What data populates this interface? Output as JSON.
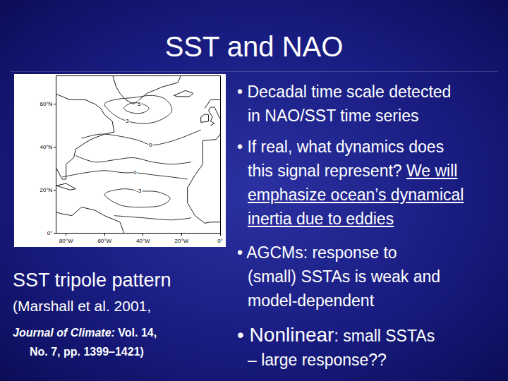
{
  "slide": {
    "title": "SST and NAO",
    "bullets": [
      [
        [
          {
            "text": "• Decadal time scale detected"
          }
        ],
        [
          {
            "text": "in NAO/SST time series"
          }
        ]
      ],
      [
        [
          {
            "text": "• If real, what dynamics does"
          }
        ],
        [
          {
            "text": "this signal represent? "
          },
          {
            "text": "We will",
            "style": "underline"
          }
        ],
        [
          {
            "text": "emphasize ocean’s dynamical",
            "style": "underline"
          }
        ],
        [
          {
            "text": "inertia due to eddies",
            "style": "underline"
          }
        ]
      ],
      [
        [
          {
            "text": "• AGCMs: response to"
          }
        ],
        [
          {
            "text": "(small) SSTAs is weak and"
          }
        ],
        [
          {
            "text": "model-dependent"
          }
        ]
      ],
      [
        [
          {
            "text": "• Nonlinear",
            "style": "large"
          },
          {
            "text": ": small SSTAs"
          }
        ],
        [
          {
            "text": "– large response??"
          }
        ]
      ]
    ],
    "caption": {
      "title": "SST tripole pattern",
      "lines": [
        [
          {
            "text": "(Marshall et al. 2001,"
          }
        ],
        [
          {
            "text": "Journal of Climate:",
            "style": "bold-italic"
          },
          {
            "text": " Vol. 14,",
            "style": "bold"
          }
        ],
        [
          {
            "text": "No. 7, pp. 1399–1421)",
            "style": "bold"
          }
        ]
      ]
    }
  },
  "chart_data": {
    "type": "contour_map",
    "xlim": [
      -85,
      0
    ],
    "ylim": [
      0,
      73
    ],
    "xticks": [
      {
        "value": -80,
        "label": "80°W"
      },
      {
        "value": -60,
        "label": "60°W"
      },
      {
        "value": -40,
        "label": "40°W"
      },
      {
        "value": -20,
        "label": "20°W"
      },
      {
        "value": 0,
        "label": "0°"
      }
    ],
    "yticks": [
      {
        "value": 0,
        "label": "0°"
      },
      {
        "value": 20,
        "label": "20°N"
      },
      {
        "value": 40,
        "label": "40°N"
      },
      {
        "value": 60,
        "label": "60°N"
      }
    ],
    "contours": [
      {
        "lon": [
          -50,
          -46,
          -40,
          -37,
          -40,
          -46,
          -50
        ],
        "lat": [
          58,
          60.5,
          60,
          58,
          56,
          56,
          58
        ]
      },
      {
        "lon": [
          -60,
          -55,
          -48,
          -38,
          -30,
          -25,
          -28,
          -35,
          -45,
          -55,
          -60
        ],
        "lat": [
          60,
          55,
          52,
          51,
          53,
          57,
          62,
          64,
          63,
          62,
          60
        ]
      },
      {
        "lon": [
          -72,
          -62,
          -52,
          -42,
          -36,
          -28,
          -18,
          -10
        ],
        "lat": [
          44,
          46,
          45,
          43,
          41,
          42,
          45,
          48
        ]
      },
      {
        "lon": [
          -75,
          -65,
          -55,
          -45,
          -35,
          -25,
          -15
        ],
        "lat": [
          36,
          33,
          34,
          35,
          33,
          32,
          33
        ]
      },
      {
        "lon": [
          -82,
          -70,
          -60,
          -50,
          -44,
          -35,
          -25,
          -17
        ],
        "lat": [
          26,
          28,
          29,
          28,
          28,
          27,
          26,
          25
        ]
      },
      {
        "lon": [
          -60,
          -50,
          -42,
          -32,
          -26,
          -30,
          -40,
          -52,
          -60
        ],
        "lat": [
          18,
          20.5,
          19.5,
          19,
          16,
          13,
          12,
          13,
          18
        ]
      },
      {
        "lon": [
          -55,
          -40,
          -25,
          -15
        ],
        "lat": [
          8,
          7,
          6,
          7
        ]
      }
    ],
    "contour_labels": [
      {
        "value": 5,
        "lon": -42,
        "lat": 60
      },
      {
        "value": 3,
        "lon": -48,
        "lat": 52
      },
      {
        "value": 0,
        "lon": -36,
        "lat": 41
      },
      {
        "value": 0,
        "lon": -44,
        "lat": 28
      },
      {
        "value": -3,
        "lon": -42,
        "lat": 19.5
      }
    ]
  }
}
